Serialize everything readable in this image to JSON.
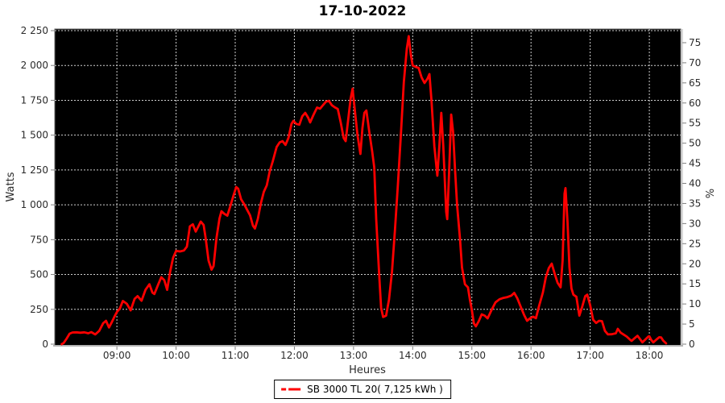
{
  "title": "17-10-2022",
  "legend": {
    "label": "SB 3000 TL 20( 7,125 kWh )",
    "line_color": "#ff0000",
    "position": "bottom-center"
  },
  "chart_data": {
    "type": "line",
    "title": "17-10-2022",
    "xlabel": "Heures",
    "ylabel_left": "Watts",
    "ylabel_right": "%",
    "plot_bg": "#000000",
    "grid": true,
    "grid_color": "#cfcfcf",
    "axis_color": "#b3b3b3",
    "tick_color": "#808080",
    "series_color": "#ff0000",
    "x_range_hours": [
      7.95,
      18.53
    ],
    "y_left_max": 2250,
    "y_right_max": 78,
    "x_tick_labels": [
      "09:00",
      "10:00",
      "11:00",
      "12:00",
      "13:00",
      "14:00",
      "15:00",
      "16:00",
      "17:00",
      "18:00"
    ],
    "y_left_tick_values": [
      0,
      250,
      500,
      750,
      1000,
      1250,
      1500,
      1750,
      2000,
      2250
    ],
    "y_left_tick_labels": [
      "0",
      "250",
      "500",
      "750",
      "1 000",
      "1 250",
      "1 500",
      "1 750",
      "2 000",
      "2 250"
    ],
    "y_right_tick_values": [
      0,
      5,
      10,
      15,
      20,
      25,
      30,
      35,
      40,
      45,
      50,
      55,
      60,
      65,
      70,
      75
    ],
    "series": [
      {
        "name": "SB 3000 TL 20( 7,125 kWh )",
        "color": "#ff0000",
        "points": [
          [
            "08:04",
            0
          ],
          [
            "08:06",
            8
          ],
          [
            "08:09",
            40
          ],
          [
            "08:12",
            75
          ],
          [
            "08:15",
            84
          ],
          [
            "08:19",
            85
          ],
          [
            "08:23",
            82
          ],
          [
            "08:27",
            85
          ],
          [
            "08:31",
            78
          ],
          [
            "08:34",
            87
          ],
          [
            "08:38",
            70
          ],
          [
            "08:42",
            95
          ],
          [
            "08:46",
            150
          ],
          [
            "08:49",
            168
          ],
          [
            "08:52",
            120
          ],
          [
            "08:55",
            160
          ],
          [
            "08:58",
            205
          ],
          [
            "09:00",
            231
          ],
          [
            "09:03",
            256
          ],
          [
            "09:06",
            310
          ],
          [
            "09:10",
            290
          ],
          [
            "09:14",
            243
          ],
          [
            "09:18",
            325
          ],
          [
            "09:21",
            345
          ],
          [
            "09:25",
            312
          ],
          [
            "09:29",
            390
          ],
          [
            "09:33",
            430
          ],
          [
            "09:36",
            370
          ],
          [
            "09:38",
            360
          ],
          [
            "09:42",
            430
          ],
          [
            "09:45",
            480
          ],
          [
            "09:48",
            460
          ],
          [
            "09:51",
            390
          ],
          [
            "09:54",
            520
          ],
          [
            "09:57",
            620
          ],
          [
            "10:00",
            670
          ],
          [
            "10:04",
            665
          ],
          [
            "10:08",
            672
          ],
          [
            "10:11",
            700
          ],
          [
            "10:14",
            845
          ],
          [
            "10:17",
            860
          ],
          [
            "10:20",
            808
          ],
          [
            "10:23",
            850
          ],
          [
            "10:25",
            880
          ],
          [
            "10:28",
            855
          ],
          [
            "10:30",
            760
          ],
          [
            "10:33",
            600
          ],
          [
            "10:36",
            535
          ],
          [
            "10:38",
            560
          ],
          [
            "10:41",
            760
          ],
          [
            "10:44",
            900
          ],
          [
            "10:46",
            954
          ],
          [
            "10:49",
            935
          ],
          [
            "10:52",
            922
          ],
          [
            "10:55",
            990
          ],
          [
            "10:58",
            1060
          ],
          [
            "11:01",
            1128
          ],
          [
            "11:03",
            1115
          ],
          [
            "11:06",
            1040
          ],
          [
            "11:09",
            1006
          ],
          [
            "11:12",
            965
          ],
          [
            "11:15",
            925
          ],
          [
            "11:18",
            850
          ],
          [
            "11:20",
            830
          ],
          [
            "11:23",
            900
          ],
          [
            "11:26",
            1010
          ],
          [
            "11:29",
            1093
          ],
          [
            "11:32",
            1140
          ],
          [
            "11:35",
            1240
          ],
          [
            "11:38",
            1310
          ],
          [
            "11:42",
            1415
          ],
          [
            "11:45",
            1448
          ],
          [
            "11:48",
            1457
          ],
          [
            "11:51",
            1430
          ],
          [
            "11:54",
            1480
          ],
          [
            "11:57",
            1580
          ],
          [
            "11:59",
            1602
          ],
          [
            "12:02",
            1580
          ],
          [
            "12:05",
            1575
          ],
          [
            "12:08",
            1635
          ],
          [
            "12:11",
            1660
          ],
          [
            "12:14",
            1625
          ],
          [
            "12:16",
            1591
          ],
          [
            "12:19",
            1640
          ],
          [
            "12:23",
            1698
          ],
          [
            "12:26",
            1690
          ],
          [
            "12:29",
            1715
          ],
          [
            "12:32",
            1740
          ],
          [
            "12:35",
            1746
          ],
          [
            "12:38",
            1715
          ],
          [
            "12:41",
            1700
          ],
          [
            "12:44",
            1688
          ],
          [
            "12:47",
            1590
          ],
          [
            "12:50",
            1480
          ],
          [
            "12:52",
            1457
          ],
          [
            "12:55",
            1640
          ],
          [
            "12:57",
            1760
          ],
          [
            "12:59",
            1833
          ],
          [
            "13:01",
            1700
          ],
          [
            "13:04",
            1500
          ],
          [
            "13:07",
            1365
          ],
          [
            "13:09",
            1550
          ],
          [
            "13:11",
            1660
          ],
          [
            "13:13",
            1677
          ],
          [
            "13:16",
            1520
          ],
          [
            "13:19",
            1380
          ],
          [
            "13:21",
            1267
          ],
          [
            "13:23",
            900
          ],
          [
            "13:26",
            500
          ],
          [
            "13:28",
            260
          ],
          [
            "13:30",
            195
          ],
          [
            "13:33",
            205
          ],
          [
            "13:36",
            320
          ],
          [
            "13:39",
            520
          ],
          [
            "13:42",
            820
          ],
          [
            "13:45",
            1150
          ],
          [
            "13:48",
            1500
          ],
          [
            "13:51",
            1880
          ],
          [
            "13:54",
            2120
          ],
          [
            "13:56",
            2210
          ],
          [
            "13:58",
            2080
          ],
          [
            "14:00",
            2000
          ],
          [
            "14:03",
            1990
          ],
          [
            "14:06",
            1982
          ],
          [
            "14:09",
            1915
          ],
          [
            "14:12",
            1874
          ],
          [
            "14:15",
            1905
          ],
          [
            "14:17",
            1938
          ],
          [
            "14:19",
            1750
          ],
          [
            "14:22",
            1420
          ],
          [
            "14:25",
            1209
          ],
          [
            "14:27",
            1420
          ],
          [
            "14:29",
            1660
          ],
          [
            "14:31",
            1420
          ],
          [
            "14:34",
            950
          ],
          [
            "14:35",
            897
          ],
          [
            "14:37",
            1250
          ],
          [
            "14:39",
            1648
          ],
          [
            "14:41",
            1520
          ],
          [
            "14:43",
            1250
          ],
          [
            "14:45",
            1000
          ],
          [
            "14:48",
            750
          ],
          [
            "14:50",
            550
          ],
          [
            "14:53",
            430
          ],
          [
            "14:56",
            408
          ],
          [
            "14:58",
            320
          ],
          [
            "15:00",
            243
          ],
          [
            "15:02",
            150
          ],
          [
            "15:04",
            128
          ],
          [
            "15:07",
            165
          ],
          [
            "15:10",
            214
          ],
          [
            "15:13",
            205
          ],
          [
            "15:16",
            185
          ],
          [
            "15:20",
            245
          ],
          [
            "15:24",
            300
          ],
          [
            "15:28",
            322
          ],
          [
            "15:32",
            332
          ],
          [
            "15:36",
            338
          ],
          [
            "15:40",
            348
          ],
          [
            "15:43",
            368
          ],
          [
            "15:46",
            330
          ],
          [
            "15:50",
            260
          ],
          [
            "15:53",
            210
          ],
          [
            "15:56",
            168
          ],
          [
            "15:59",
            185
          ],
          [
            "16:02",
            197
          ],
          [
            "16:05",
            186
          ],
          [
            "16:08",
            270
          ],
          [
            "16:12",
            370
          ],
          [
            "16:15",
            480
          ],
          [
            "16:18",
            545
          ],
          [
            "16:21",
            578
          ],
          [
            "16:24",
            505
          ],
          [
            "16:27",
            440
          ],
          [
            "16:30",
            408
          ],
          [
            "16:32",
            600
          ],
          [
            "16:34",
            1080
          ],
          [
            "16:35",
            1120
          ],
          [
            "16:37",
            880
          ],
          [
            "16:39",
            550
          ],
          [
            "16:41",
            400
          ],
          [
            "16:43",
            355
          ],
          [
            "16:46",
            340
          ],
          [
            "16:49",
            205
          ],
          [
            "16:52",
            270
          ],
          [
            "16:55",
            345
          ],
          [
            "16:57",
            355
          ],
          [
            "17:00",
            280
          ],
          [
            "17:03",
            175
          ],
          [
            "17:06",
            152
          ],
          [
            "17:09",
            168
          ],
          [
            "17:12",
            165
          ],
          [
            "17:15",
            95
          ],
          [
            "17:18",
            70
          ],
          [
            "17:22",
            71
          ],
          [
            "17:26",
            78
          ],
          [
            "17:28",
            110
          ],
          [
            "17:31",
            82
          ],
          [
            "17:34",
            68
          ],
          [
            "17:37",
            55
          ],
          [
            "17:40",
            35
          ],
          [
            "17:42",
            24
          ],
          [
            "17:45",
            42
          ],
          [
            "17:48",
            60
          ],
          [
            "17:51",
            32
          ],
          [
            "17:53",
            13
          ],
          [
            "17:56",
            34
          ],
          [
            "17:59",
            55
          ],
          [
            "18:00",
            56
          ],
          [
            "18:02",
            30
          ],
          [
            "18:04",
            13
          ],
          [
            "18:07",
            32
          ],
          [
            "18:10",
            50
          ],
          [
            "18:12",
            48
          ],
          [
            "18:14",
            26
          ],
          [
            "18:16",
            12
          ],
          [
            "18:17",
            6
          ]
        ]
      }
    ]
  }
}
